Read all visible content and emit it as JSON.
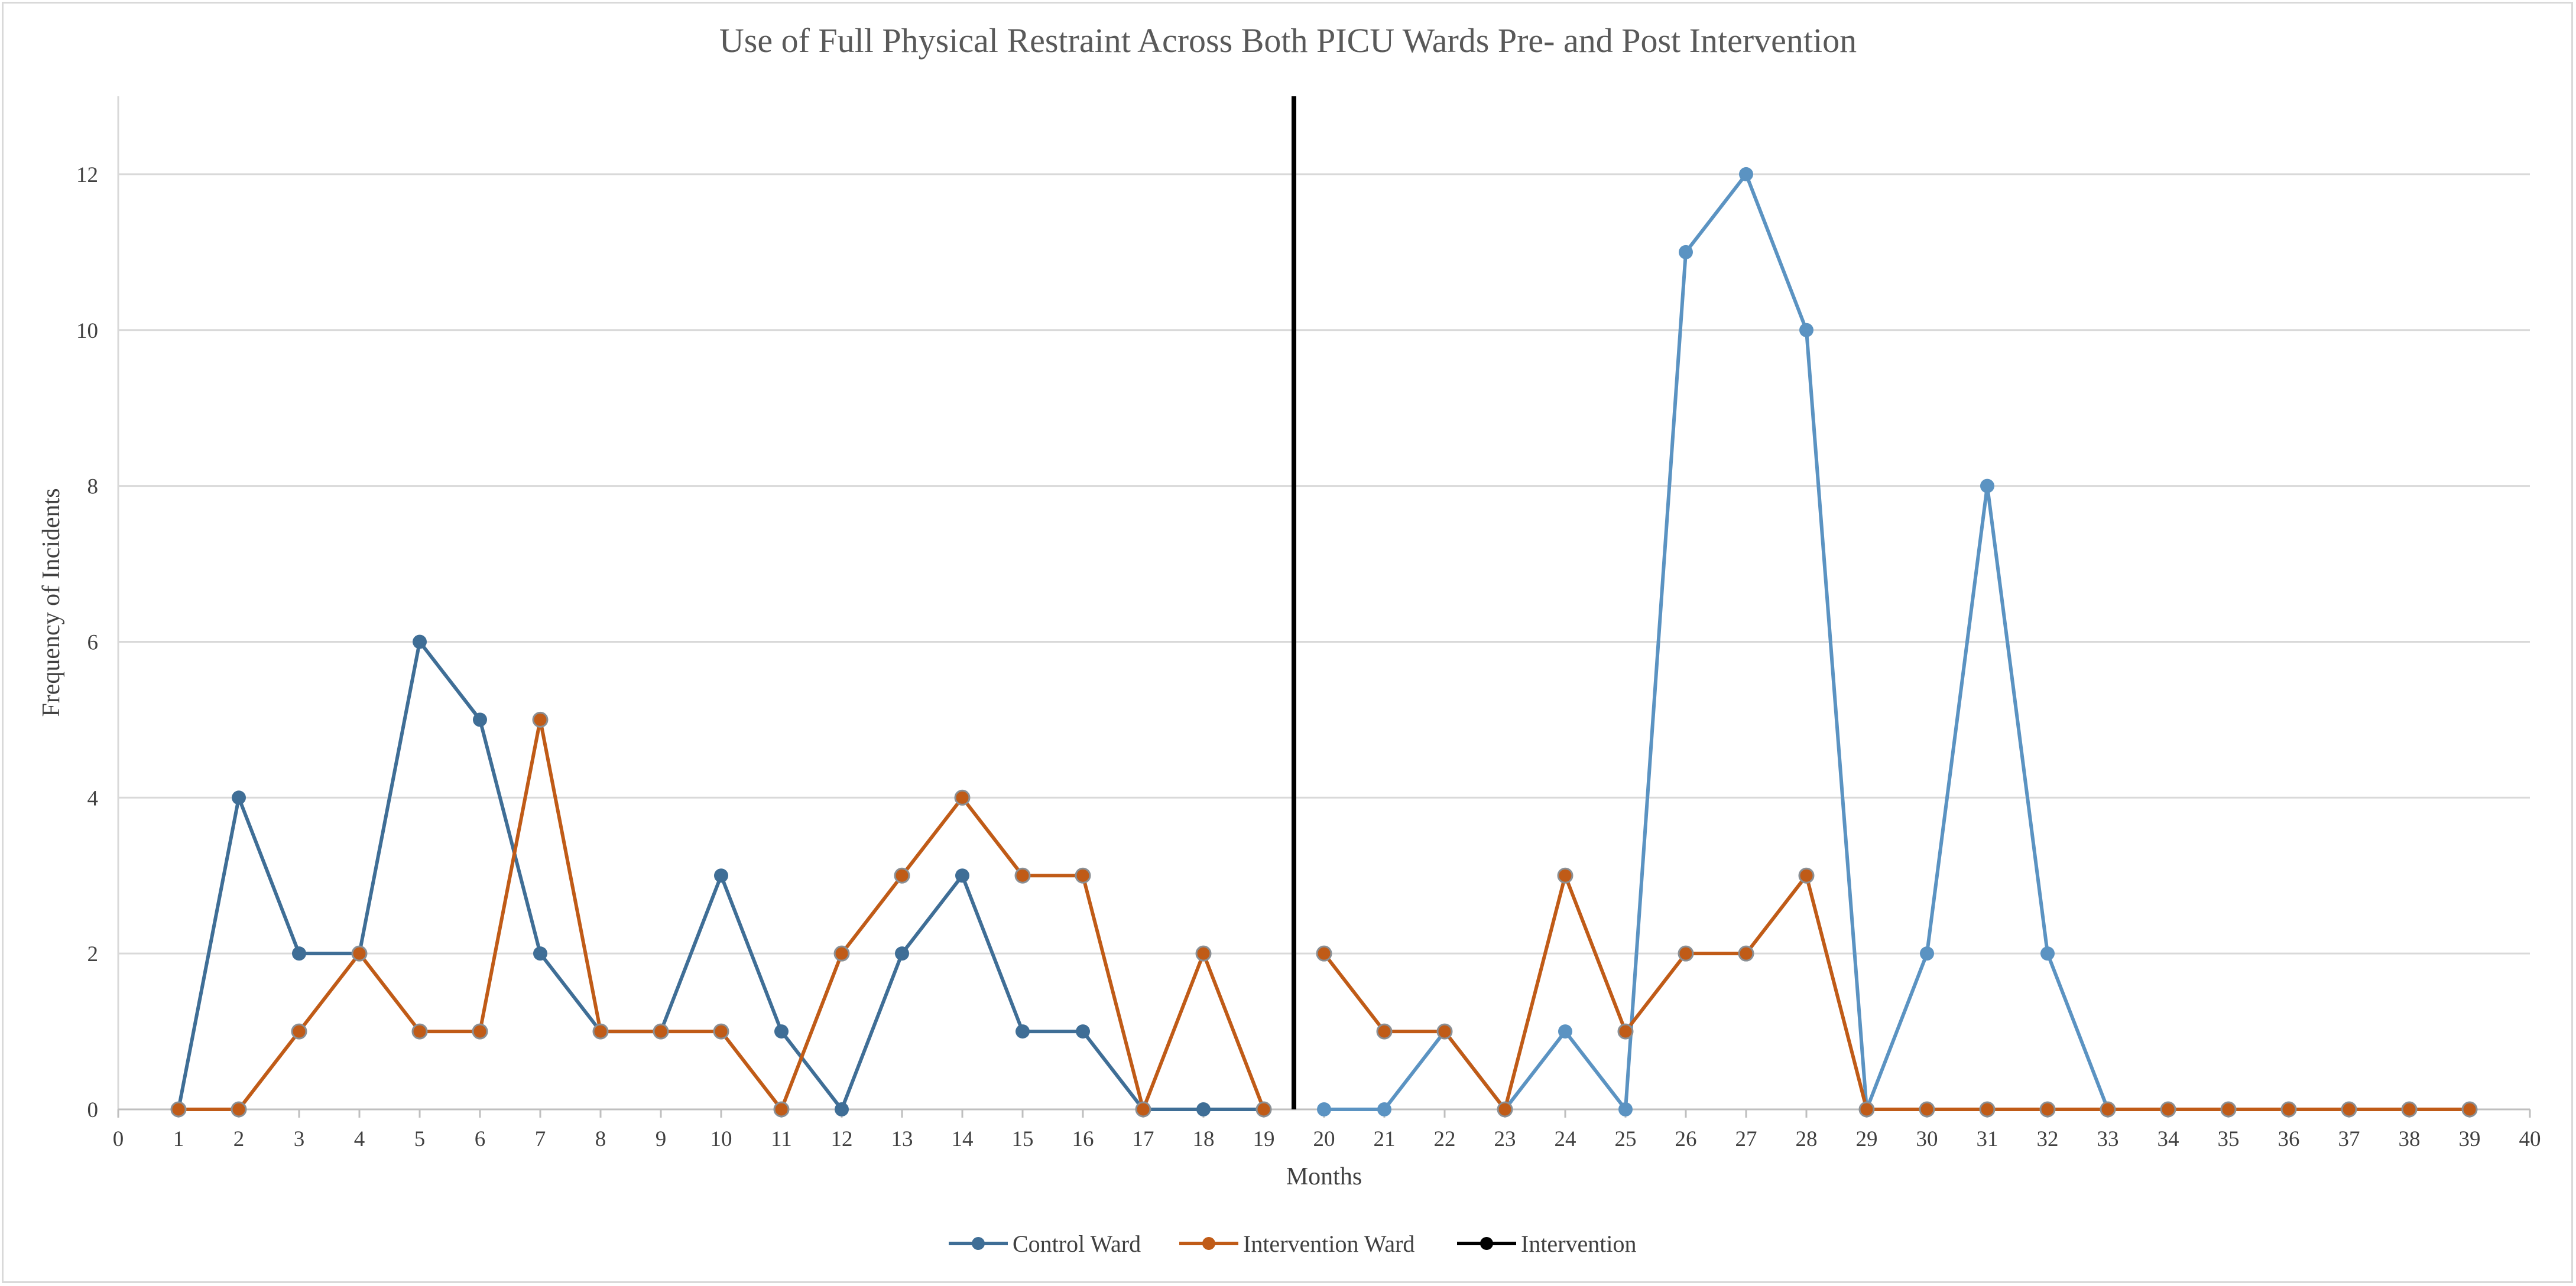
{
  "chart_data": {
    "type": "line",
    "title": "Use of Full Physical Restraint Across Both PICU Wards Pre- and Post Intervention",
    "xlabel": "Months",
    "ylabel": "Frequency of Incidents",
    "xlim": [
      0,
      40
    ],
    "ylim": [
      0,
      13
    ],
    "xticks": [
      0,
      1,
      2,
      3,
      4,
      5,
      6,
      7,
      8,
      9,
      10,
      11,
      12,
      13,
      14,
      15,
      16,
      17,
      18,
      19,
      20,
      21,
      22,
      23,
      24,
      25,
      26,
      27,
      28,
      29,
      30,
      31,
      32,
      33,
      34,
      35,
      36,
      37,
      38,
      39,
      40
    ],
    "yticks": [
      0,
      2,
      4,
      6,
      8,
      10,
      12
    ],
    "grid": "horizontal",
    "legend_position": "bottom",
    "series": [
      {
        "name": "Control Ward",
        "color": "#3f6e96",
        "post_color": "#5b93c2",
        "segments": [
          {
            "x": [
              1,
              2,
              3,
              4,
              5,
              6,
              7,
              8,
              9,
              10,
              11,
              12,
              13,
              14,
              15,
              16,
              17,
              18,
              19
            ],
            "y": [
              0,
              4,
              2,
              2,
              6,
              5,
              2,
              1,
              1,
              3,
              1,
              0,
              2,
              3,
              1,
              1,
              0,
              0,
              0
            ]
          },
          {
            "x": [
              20,
              21,
              22,
              23,
              24,
              25,
              26,
              27,
              28,
              29,
              30,
              31,
              32,
              33,
              34,
              35,
              36,
              37,
              38,
              39
            ],
            "y": [
              0,
              0,
              1,
              0,
              1,
              0,
              11,
              12,
              10,
              0,
              2,
              8,
              2,
              0,
              0,
              0,
              0,
              0,
              0,
              0
            ]
          }
        ]
      },
      {
        "name": "Intervention Ward",
        "color": "#c05b17",
        "segments": [
          {
            "x": [
              1,
              2,
              3,
              4,
              5,
              6,
              7,
              8,
              9,
              10,
              11,
              12,
              13,
              14,
              15,
              16,
              17,
              18,
              19
            ],
            "y": [
              0,
              0,
              1,
              2,
              1,
              1,
              5,
              1,
              1,
              1,
              0,
              2,
              3,
              4,
              3,
              3,
              0,
              2,
              0
            ]
          },
          {
            "x": [
              20,
              21,
              22,
              23,
              24,
              25,
              26,
              27,
              28,
              29,
              30,
              31,
              32,
              33,
              34,
              35,
              36,
              37,
              38,
              39
            ],
            "y": [
              2,
              1,
              1,
              0,
              3,
              1,
              2,
              2,
              3,
              0,
              0,
              0,
              0,
              0,
              0,
              0,
              0,
              0,
              0,
              0
            ]
          }
        ]
      },
      {
        "name": "Intervention",
        "color": "#000000",
        "marker_line": {
          "x": 19.5,
          "y": [
            0,
            13
          ]
        }
      }
    ]
  }
}
